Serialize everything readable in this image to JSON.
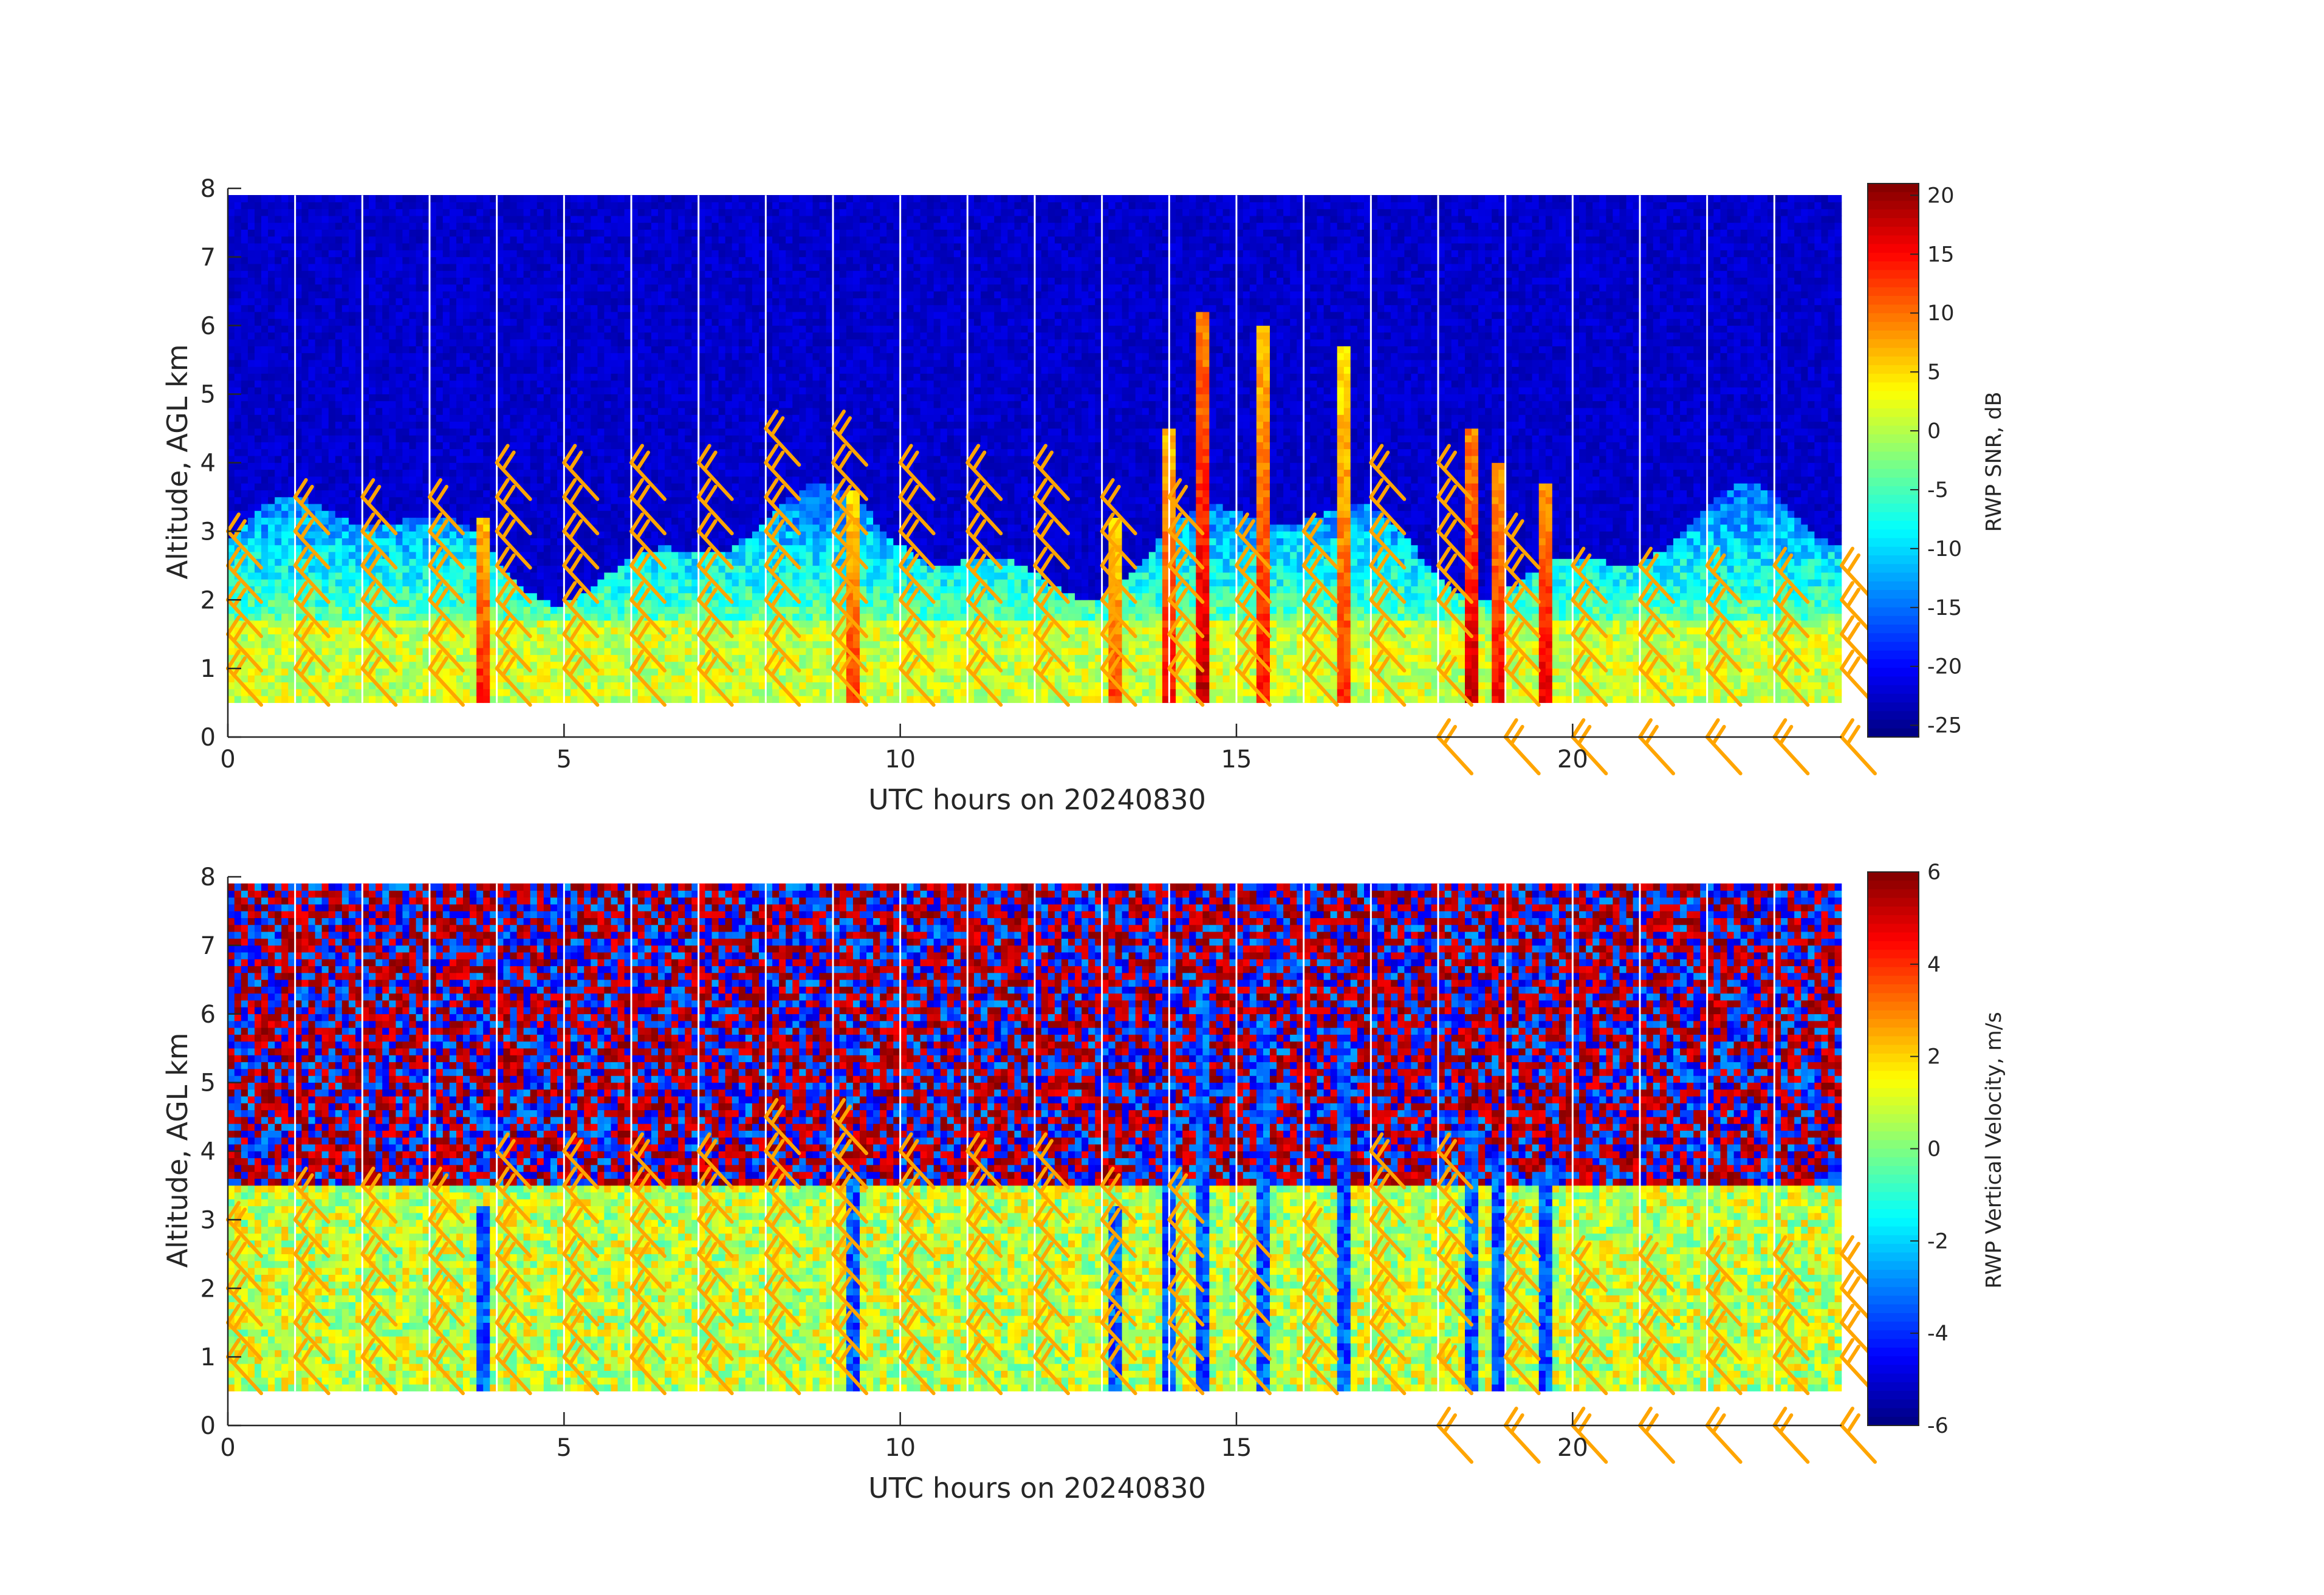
{
  "chart_data": [
    {
      "type": "heatmap",
      "title": "",
      "xlabel": "UTC hours on 20240830",
      "ylabel": "Altitude, AGL km",
      "xlim": [
        0,
        24
      ],
      "ylim": [
        0,
        8
      ],
      "xticks": [
        "0",
        "5",
        "10",
        "15",
        "20"
      ],
      "yticks": [
        "0",
        "1",
        "2",
        "3",
        "4",
        "5",
        "6",
        "7",
        "8"
      ],
      "colorbar": {
        "label": "RWP SNR, dB",
        "range": [
          -26,
          21
        ],
        "ticks": [
          "20",
          "15",
          "10",
          "5",
          "0",
          "-5",
          "-10",
          "-15",
          "-20",
          "-25"
        ],
        "colormap": "jet"
      },
      "data_altitude_range_km": [
        0.5,
        7.9
      ],
      "low_snr_boundary_layer_top_km": 1.7,
      "precipitation_columns": [
        {
          "time_h": 3.8,
          "top_km": 3.2,
          "peak_db": 14
        },
        {
          "time_h": 9.3,
          "top_km": 3.6,
          "peak_db": 13
        },
        {
          "time_h": 13.2,
          "top_km": 3.2,
          "peak_db": 12
        },
        {
          "time_h": 14.0,
          "top_km": 4.5,
          "peak_db": 14
        },
        {
          "time_h": 14.5,
          "top_km": 6.2,
          "peak_db": 17
        },
        {
          "time_h": 15.4,
          "top_km": 6.0,
          "peak_db": 14
        },
        {
          "time_h": 16.6,
          "top_km": 5.7,
          "peak_db": 12
        },
        {
          "time_h": 18.5,
          "top_km": 4.5,
          "peak_db": 17
        },
        {
          "time_h": 18.9,
          "top_km": 4.0,
          "peak_db": 15
        },
        {
          "time_h": 19.6,
          "top_km": 3.7,
          "peak_db": 16
        }
      ],
      "wind_barb_color": "#ffa500"
    },
    {
      "type": "heatmap",
      "title": "",
      "xlabel": "UTC hours on 20240830",
      "ylabel": "Altitude, AGL km",
      "xlim": [
        0,
        24
      ],
      "ylim": [
        0,
        8
      ],
      "xticks": [
        "0",
        "5",
        "10",
        "15",
        "20"
      ],
      "yticks": [
        "0",
        "1",
        "2",
        "3",
        "4",
        "5",
        "6",
        "7",
        "8"
      ],
      "colorbar": {
        "label": "RWP Vertical Velocity, m/s",
        "range": [
          -6,
          6
        ],
        "ticks": [
          "6",
          "4",
          "2",
          "0",
          "-2",
          "-4",
          "-6"
        ],
        "colormap": "jet"
      },
      "data_altitude_range_km": [
        0.5,
        7.9
      ],
      "wind_barb_color": "#ffa500"
    }
  ],
  "wind_barbs": [
    {
      "time_h": 0.0,
      "alt_km": [
        1.0,
        1.5,
        2.0,
        2.5,
        3.0
      ]
    },
    {
      "time_h": 1.0,
      "alt_km": [
        1.0,
        1.5,
        2.0,
        2.5,
        3.0,
        3.5
      ]
    },
    {
      "time_h": 2.0,
      "alt_km": [
        1.0,
        1.5,
        2.0,
        2.5,
        3.0,
        3.5
      ]
    },
    {
      "time_h": 3.0,
      "alt_km": [
        1.0,
        1.5,
        2.0,
        2.5,
        3.0,
        3.5
      ]
    },
    {
      "time_h": 4.0,
      "alt_km": [
        1.0,
        1.5,
        2.0,
        2.5,
        3.0,
        3.5,
        4.0
      ]
    },
    {
      "time_h": 5.0,
      "alt_km": [
        1.0,
        1.5,
        2.0,
        2.5,
        3.0,
        3.5,
        4.0
      ]
    },
    {
      "time_h": 6.0,
      "alt_km": [
        1.0,
        1.5,
        2.0,
        2.5,
        3.0,
        3.5,
        4.0
      ]
    },
    {
      "time_h": 7.0,
      "alt_km": [
        1.0,
        1.5,
        2.0,
        2.5,
        3.0,
        3.5,
        4.0
      ]
    },
    {
      "time_h": 8.0,
      "alt_km": [
        1.0,
        1.5,
        2.0,
        2.5,
        3.0,
        3.5,
        4.0,
        4.5
      ]
    },
    {
      "time_h": 9.0,
      "alt_km": [
        1.0,
        1.5,
        2.0,
        2.5,
        3.0,
        3.5,
        4.0,
        4.5
      ]
    },
    {
      "time_h": 10.0,
      "alt_km": [
        1.0,
        1.5,
        2.0,
        2.5,
        3.0,
        3.5,
        4.0
      ]
    },
    {
      "time_h": 11.0,
      "alt_km": [
        1.0,
        1.5,
        2.0,
        2.5,
        3.0,
        3.5,
        4.0
      ]
    },
    {
      "time_h": 12.0,
      "alt_km": [
        1.0,
        1.5,
        2.0,
        2.5,
        3.0,
        3.5,
        4.0
      ]
    },
    {
      "time_h": 13.0,
      "alt_km": [
        1.0,
        1.5,
        2.0,
        2.5,
        3.0,
        3.5
      ]
    },
    {
      "time_h": 14.0,
      "alt_km": [
        1.0,
        1.5,
        2.0,
        2.5,
        3.0,
        3.5
      ]
    },
    {
      "time_h": 15.0,
      "alt_km": [
        1.0,
        1.5,
        2.0,
        2.5,
        3.0
      ]
    },
    {
      "time_h": 16.0,
      "alt_km": [
        1.0,
        1.5,
        2.0,
        2.5,
        3.0
      ]
    },
    {
      "time_h": 17.0,
      "alt_km": [
        1.0,
        1.5,
        2.0,
        2.5,
        3.0,
        3.5,
        4.0
      ]
    },
    {
      "time_h": 18.0,
      "alt_km": [
        0.0,
        1.0,
        2.0,
        2.5,
        3.0,
        3.5,
        4.0
      ]
    },
    {
      "time_h": 19.0,
      "alt_km": [
        0.0,
        1.0,
        1.5,
        2.0,
        2.5,
        3.0
      ]
    },
    {
      "time_h": 20.0,
      "alt_km": [
        0.0,
        1.0,
        1.5,
        2.0,
        2.5
      ]
    },
    {
      "time_h": 21.0,
      "alt_km": [
        0.0,
        1.0,
        1.5,
        2.0,
        2.5
      ]
    },
    {
      "time_h": 22.0,
      "alt_km": [
        0.0,
        1.0,
        1.5,
        2.0,
        2.5
      ]
    },
    {
      "time_h": 23.0,
      "alt_km": [
        0.0,
        1.0,
        1.5,
        2.0,
        2.5
      ]
    },
    {
      "time_h": 24.0,
      "alt_km": [
        0.0,
        1.0,
        1.5,
        2.0,
        2.5
      ]
    }
  ]
}
